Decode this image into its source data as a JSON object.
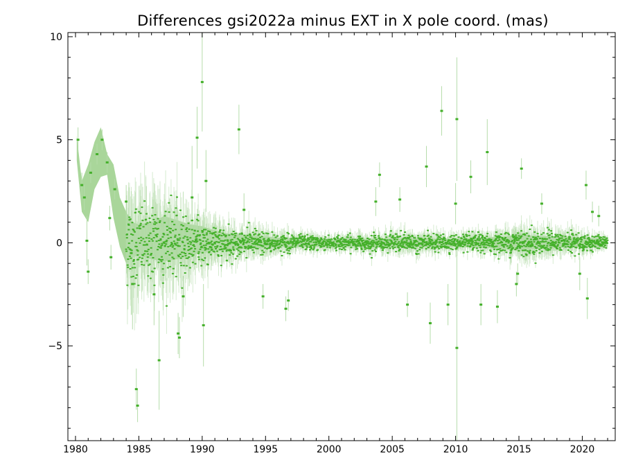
{
  "chart_data": {
    "type": "scatter",
    "title": "Differences gsi2022a minus EXT in X pole coord. (mas)",
    "xlabel": "",
    "ylabel": "",
    "xlim": [
      1979.4,
      2022.6
    ],
    "ylim": [
      -9.6,
      10.2
    ],
    "x_ticks": [
      1980,
      1985,
      1990,
      1995,
      2000,
      2005,
      2010,
      2015,
      2020
    ],
    "x_tick_labels": [
      "1980",
      "1985",
      "1990",
      "1995",
      "2000",
      "2005",
      "2010",
      "2015",
      "2020"
    ],
    "y_ticks": [
      10,
      5,
      0,
      -5
    ],
    "y_tick_labels": [
      "10",
      "5",
      "0",
      "−5"
    ],
    "grid": false,
    "legend": "none",
    "colors": {
      "points": "#44b02a",
      "band": "#a9d69a",
      "errorbars": "#b5dcaa",
      "frame": "#000000"
    },
    "uncertainty_band": {
      "x": [
        1980.1,
        1980.5,
        1981.0,
        1981.5,
        1982.0,
        1982.5,
        1983.0,
        1983.5,
        1984.0,
        1984.5,
        1985.0,
        1986.0,
        1987.0,
        1988.0,
        1989.0,
        1990.0,
        1991.0,
        1992.0,
        1993.0,
        1994.0,
        1995.0,
        1996.0,
        2000.0,
        2005.0,
        2010.0,
        2014.0,
        2015.0,
        2016.0,
        2018.0,
        2020.0,
        2022.0
      ],
      "upper": [
        5.2,
        3.0,
        3.8,
        4.9,
        5.6,
        4.3,
        3.8,
        2.2,
        1.5,
        1.0,
        0.9,
        1.0,
        1.3,
        1.1,
        0.9,
        0.8,
        0.6,
        0.45,
        0.4,
        0.35,
        0.3,
        0.25,
        0.2,
        0.2,
        0.2,
        0.3,
        0.45,
        0.35,
        0.3,
        0.25,
        0.2
      ],
      "lower": [
        4.0,
        1.5,
        1.0,
        2.6,
        3.2,
        3.3,
        1.2,
        -0.2,
        -1.0,
        -0.7,
        -0.6,
        -0.8,
        -0.9,
        -0.8,
        -0.6,
        -0.5,
        -0.4,
        -0.35,
        -0.3,
        -0.3,
        -0.25,
        -0.2,
        -0.2,
        -0.2,
        -0.2,
        -0.3,
        -0.4,
        -0.3,
        -0.25,
        -0.2,
        -0.2
      ]
    },
    "outliers": [
      {
        "x": 1980.2,
        "y": 5.0,
        "err": 0.6
      },
      {
        "x": 1980.5,
        "y": 2.8,
        "err": 0.6
      },
      {
        "x": 1980.7,
        "y": 2.2,
        "err": 0.6
      },
      {
        "x": 1980.9,
        "y": 0.1,
        "err": 1.2
      },
      {
        "x": 1981.0,
        "y": -1.4,
        "err": 0.6
      },
      {
        "x": 1981.2,
        "y": 3.4,
        "err": 0.5
      },
      {
        "x": 1981.7,
        "y": 4.3,
        "err": 0.5
      },
      {
        "x": 1982.1,
        "y": 5.0,
        "err": 0.5
      },
      {
        "x": 1982.5,
        "y": 3.9,
        "err": 0.5
      },
      {
        "x": 1982.7,
        "y": 1.2,
        "err": 0.6
      },
      {
        "x": 1982.8,
        "y": -0.7,
        "err": 0.6
      },
      {
        "x": 1983.1,
        "y": 2.6,
        "err": 0.5
      },
      {
        "x": 1984.0,
        "y": 2.0,
        "err": 0.8
      },
      {
        "x": 1984.4,
        "y": -0.5,
        "err": 3.0
      },
      {
        "x": 1984.5,
        "y": -2.0,
        "err": 2.2
      },
      {
        "x": 1984.8,
        "y": -7.1,
        "err": 1.0
      },
      {
        "x": 1984.9,
        "y": -7.9,
        "err": 0.8
      },
      {
        "x": 1986.2,
        "y": -2.5,
        "err": 1.5
      },
      {
        "x": 1986.6,
        "y": -5.7,
        "err": 2.4
      },
      {
        "x": 1988.1,
        "y": -4.4,
        "err": 1.0
      },
      {
        "x": 1988.2,
        "y": -4.6,
        "err": 1.0
      },
      {
        "x": 1988.5,
        "y": -2.6,
        "err": 1.0
      },
      {
        "x": 1989.2,
        "y": 2.2,
        "err": 2.5
      },
      {
        "x": 1989.6,
        "y": 5.1,
        "err": 1.5
      },
      {
        "x": 1990.0,
        "y": 7.8,
        "err": 2.4
      },
      {
        "x": 1990.1,
        "y": -4.0,
        "err": 2.0
      },
      {
        "x": 1990.3,
        "y": 3.0,
        "err": 1.5
      },
      {
        "x": 1992.9,
        "y": 5.5,
        "err": 1.2
      },
      {
        "x": 1993.3,
        "y": 1.6,
        "err": 0.8
      },
      {
        "x": 1994.8,
        "y": -2.6,
        "err": 0.6
      },
      {
        "x": 1996.6,
        "y": -3.2,
        "err": 0.6
      },
      {
        "x": 1996.8,
        "y": -2.8,
        "err": 0.5
      },
      {
        "x": 2003.7,
        "y": 2.0,
        "err": 0.7
      },
      {
        "x": 2004.0,
        "y": 3.3,
        "err": 0.6
      },
      {
        "x": 2005.6,
        "y": 2.1,
        "err": 0.6
      },
      {
        "x": 2006.2,
        "y": -3.0,
        "err": 0.6
      },
      {
        "x": 2007.7,
        "y": 3.7,
        "err": 1.0
      },
      {
        "x": 2008.0,
        "y": -3.9,
        "err": 1.0
      },
      {
        "x": 2008.9,
        "y": 6.4,
        "err": 1.2
      },
      {
        "x": 2009.4,
        "y": -3.0,
        "err": 1.0
      },
      {
        "x": 2010.0,
        "y": 1.9,
        "err": 1.0
      },
      {
        "x": 2010.1,
        "y": 6.0,
        "err": 3.0
      },
      {
        "x": 2010.1,
        "y": -5.1,
        "err": 4.5
      },
      {
        "x": 2011.2,
        "y": 3.2,
        "err": 0.8
      },
      {
        "x": 2012.0,
        "y": -3.0,
        "err": 1.0
      },
      {
        "x": 2012.5,
        "y": 4.4,
        "err": 1.6
      },
      {
        "x": 2013.3,
        "y": -3.1,
        "err": 0.8
      },
      {
        "x": 2014.8,
        "y": -2.0,
        "err": 0.6
      },
      {
        "x": 2014.9,
        "y": -1.5,
        "err": 0.5
      },
      {
        "x": 2015.2,
        "y": 3.6,
        "err": 0.5
      },
      {
        "x": 2016.8,
        "y": 1.9,
        "err": 0.5
      },
      {
        "x": 2019.8,
        "y": -1.5,
        "err": 0.8
      },
      {
        "x": 2020.3,
        "y": 2.8,
        "err": 0.7
      },
      {
        "x": 2020.4,
        "y": -2.7,
        "err": 1.0
      },
      {
        "x": 2020.8,
        "y": 1.5,
        "err": 0.5
      },
      {
        "x": 2021.3,
        "y": 1.3,
        "err": 0.5
      }
    ],
    "dense_series_spread": {
      "x": [
        1984.0,
        1985.0,
        1986.0,
        1987.0,
        1988.0,
        1989.0,
        1990.0,
        1991.0,
        1992.0,
        1993.0,
        1994.0,
        1995.0,
        1996.0,
        1998.0,
        2000.0,
        2004.0,
        2006.0,
        2008.0,
        2010.0,
        2012.0,
        2014.0,
        2015.0,
        2016.0,
        2018.0,
        2020.0,
        2022.0
      ],
      "sd": [
        1.0,
        1.0,
        0.9,
        0.9,
        0.8,
        0.7,
        0.55,
        0.45,
        0.38,
        0.33,
        0.3,
        0.27,
        0.22,
        0.18,
        0.16,
        0.2,
        0.22,
        0.2,
        0.18,
        0.2,
        0.25,
        0.35,
        0.3,
        0.25,
        0.22,
        0.12
      ],
      "density": [
        40,
        70,
        90,
        110,
        120,
        130,
        150,
        150,
        140,
        130,
        120,
        110,
        100,
        90,
        90,
        80,
        80,
        80,
        80,
        80,
        90,
        100,
        100,
        90,
        90,
        80
      ]
    }
  }
}
